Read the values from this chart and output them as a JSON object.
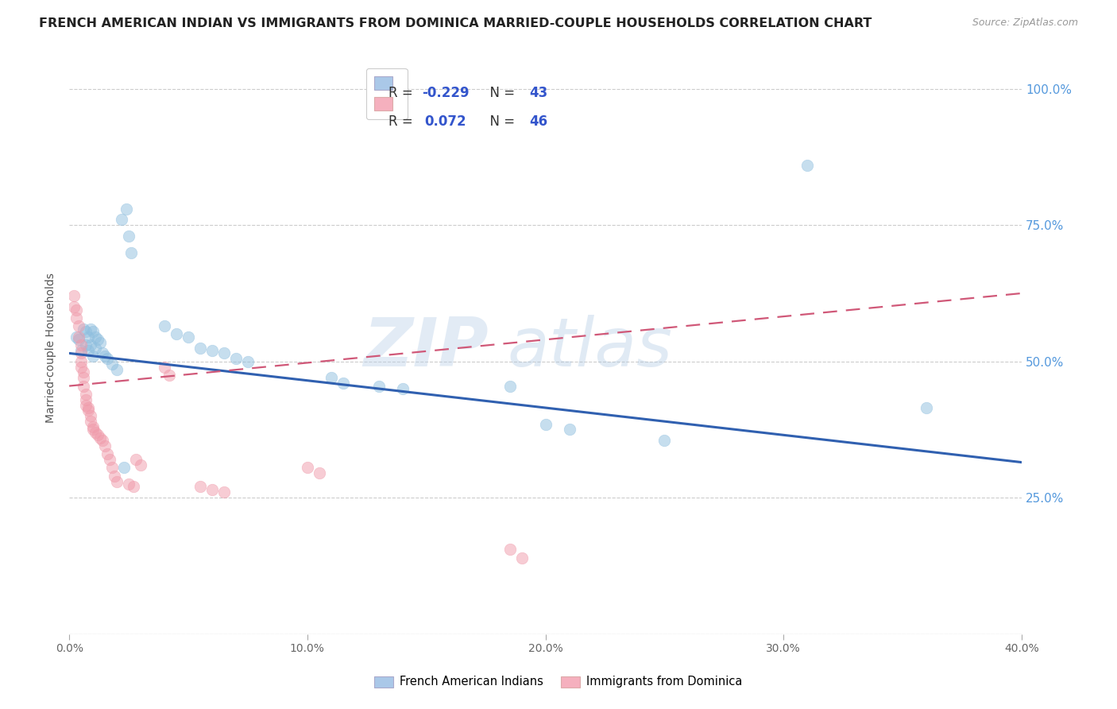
{
  "title": "FRENCH AMERICAN INDIAN VS IMMIGRANTS FROM DOMINICA MARRIED-COUPLE HOUSEHOLDS CORRELATION CHART",
  "source": "Source: ZipAtlas.com",
  "ylabel": "Married-couple Households",
  "y_ticks": [
    0.0,
    0.25,
    0.5,
    0.75,
    1.0
  ],
  "y_tick_labels": [
    "",
    "25.0%",
    "50.0%",
    "75.0%",
    "100.0%"
  ],
  "x_range": [
    0.0,
    0.4
  ],
  "y_range": [
    0.0,
    1.05
  ],
  "blue_points": [
    [
      0.003,
      0.545
    ],
    [
      0.004,
      0.54
    ],
    [
      0.005,
      0.52
    ],
    [
      0.006,
      0.56
    ],
    [
      0.007,
      0.555
    ],
    [
      0.007,
      0.53
    ],
    [
      0.008,
      0.545
    ],
    [
      0.008,
      0.52
    ],
    [
      0.009,
      0.56
    ],
    [
      0.009,
      0.53
    ],
    [
      0.01,
      0.555
    ],
    [
      0.01,
      0.51
    ],
    [
      0.011,
      0.545
    ],
    [
      0.011,
      0.525
    ],
    [
      0.012,
      0.54
    ],
    [
      0.013,
      0.535
    ],
    [
      0.014,
      0.515
    ],
    [
      0.015,
      0.51
    ],
    [
      0.016,
      0.505
    ],
    [
      0.018,
      0.495
    ],
    [
      0.02,
      0.485
    ],
    [
      0.022,
      0.76
    ],
    [
      0.024,
      0.78
    ],
    [
      0.025,
      0.73
    ],
    [
      0.026,
      0.7
    ],
    [
      0.04,
      0.565
    ],
    [
      0.045,
      0.55
    ],
    [
      0.05,
      0.545
    ],
    [
      0.055,
      0.525
    ],
    [
      0.06,
      0.52
    ],
    [
      0.065,
      0.515
    ],
    [
      0.07,
      0.505
    ],
    [
      0.075,
      0.5
    ],
    [
      0.11,
      0.47
    ],
    [
      0.115,
      0.46
    ],
    [
      0.13,
      0.455
    ],
    [
      0.14,
      0.45
    ],
    [
      0.185,
      0.455
    ],
    [
      0.2,
      0.385
    ],
    [
      0.21,
      0.375
    ],
    [
      0.25,
      0.355
    ],
    [
      0.31,
      0.86
    ],
    [
      0.36,
      0.415
    ],
    [
      0.023,
      0.305
    ]
  ],
  "pink_points": [
    [
      0.002,
      0.62
    ],
    [
      0.002,
      0.6
    ],
    [
      0.003,
      0.595
    ],
    [
      0.003,
      0.58
    ],
    [
      0.004,
      0.565
    ],
    [
      0.004,
      0.545
    ],
    [
      0.005,
      0.53
    ],
    [
      0.005,
      0.515
    ],
    [
      0.005,
      0.5
    ],
    [
      0.005,
      0.49
    ],
    [
      0.006,
      0.48
    ],
    [
      0.006,
      0.47
    ],
    [
      0.006,
      0.455
    ],
    [
      0.007,
      0.44
    ],
    [
      0.007,
      0.43
    ],
    [
      0.007,
      0.42
    ],
    [
      0.008,
      0.415
    ],
    [
      0.008,
      0.41
    ],
    [
      0.009,
      0.4
    ],
    [
      0.009,
      0.39
    ],
    [
      0.01,
      0.38
    ],
    [
      0.01,
      0.375
    ],
    [
      0.011,
      0.37
    ],
    [
      0.012,
      0.365
    ],
    [
      0.013,
      0.36
    ],
    [
      0.014,
      0.355
    ],
    [
      0.015,
      0.345
    ],
    [
      0.016,
      0.33
    ],
    [
      0.017,
      0.32
    ],
    [
      0.018,
      0.305
    ],
    [
      0.019,
      0.29
    ],
    [
      0.02,
      0.28
    ],
    [
      0.025,
      0.275
    ],
    [
      0.027,
      0.27
    ],
    [
      0.028,
      0.32
    ],
    [
      0.03,
      0.31
    ],
    [
      0.04,
      0.49
    ],
    [
      0.042,
      0.475
    ],
    [
      0.055,
      0.27
    ],
    [
      0.06,
      0.265
    ],
    [
      0.065,
      0.26
    ],
    [
      0.1,
      0.305
    ],
    [
      0.105,
      0.295
    ],
    [
      0.185,
      0.155
    ],
    [
      0.19,
      0.14
    ]
  ],
  "blue_line_x": [
    0.0,
    0.4
  ],
  "blue_line_y": [
    0.515,
    0.315
  ],
  "pink_line_x": [
    0.0,
    0.4
  ],
  "pink_line_y": [
    0.455,
    0.625
  ],
  "watermark_zip": "ZIP",
  "watermark_atlas": "atlas",
  "dot_size": 110,
  "dot_alpha": 0.5,
  "blue_color": "#8fbfdf",
  "pink_color": "#f09aaa",
  "blue_line_color": "#3060b0",
  "pink_line_color": "#d05878",
  "grid_color": "#cccccc",
  "title_fontsize": 11.5,
  "axis_label_fontsize": 10,
  "tick_fontsize": 10,
  "source_fontsize": 9,
  "right_tick_color": "#5599dd",
  "legend_text_color": "#333344",
  "legend_value_color": "#3355cc"
}
